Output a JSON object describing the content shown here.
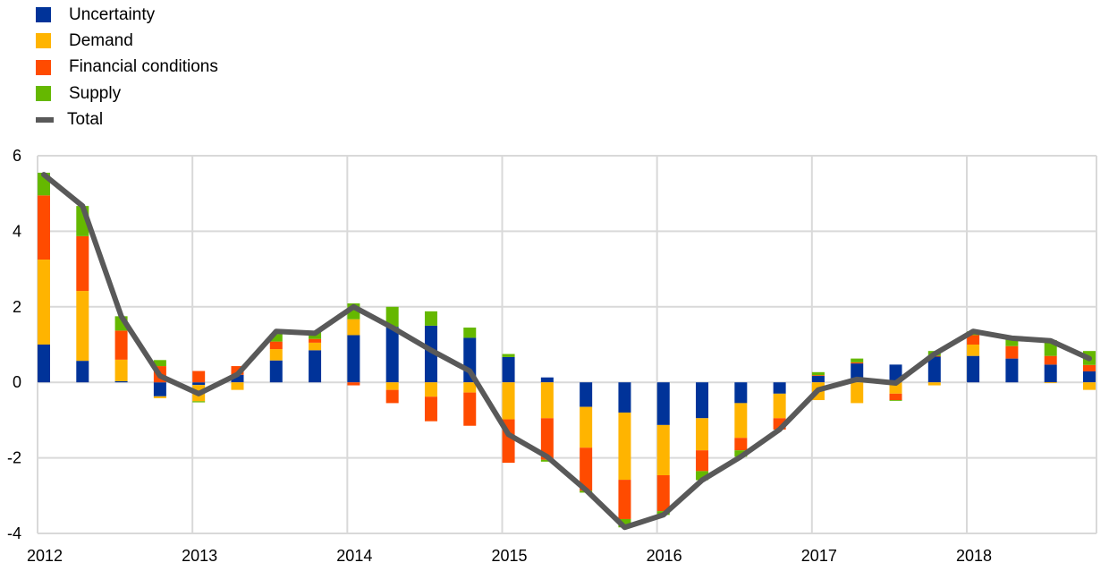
{
  "chart_data": {
    "type": "bar",
    "stacked": true,
    "title": "",
    "xlabel": "",
    "ylabel": "",
    "ylim": [
      -4,
      6
    ],
    "yticks": [
      "-4",
      "-2",
      "0",
      "2",
      "4",
      "6"
    ],
    "xticks": [
      "2012",
      "2013",
      "2014",
      "2015",
      "2016",
      "2017",
      "2018"
    ],
    "grid": true,
    "legend_position": "top-left",
    "categories": [
      "2012Q1",
      "2012Q2",
      "2012Q3",
      "2012Q4",
      "2013Q1",
      "2013Q2",
      "2013Q3",
      "2013Q4",
      "2014Q1",
      "2014Q2",
      "2014Q3",
      "2014Q4",
      "2015Q1",
      "2015Q2",
      "2015Q3",
      "2015Q4",
      "2016Q1",
      "2016Q2",
      "2016Q3",
      "2016Q4",
      "2017Q1",
      "2017Q2",
      "2017Q3",
      "2017Q4",
      "2018Q1",
      "2018Q2",
      "2018Q3",
      "2018Q4"
    ],
    "series": [
      {
        "name": "Uncertainty",
        "color": "#003399",
        "values": [
          1.0,
          0.57,
          0.03,
          -0.37,
          -0.07,
          0.2,
          0.58,
          0.85,
          1.25,
          1.47,
          1.5,
          1.18,
          0.67,
          0.13,
          -0.65,
          -0.8,
          -1.13,
          -0.95,
          -0.55,
          -0.3,
          0.17,
          0.5,
          0.47,
          0.68,
          0.7,
          0.63,
          0.47,
          0.29
        ]
      },
      {
        "name": "Demand",
        "color": "#FFB400",
        "values": [
          2.25,
          1.85,
          0.57,
          -0.05,
          -0.43,
          -0.2,
          0.3,
          0.2,
          0.42,
          -0.2,
          -0.38,
          -0.27,
          -0.98,
          -0.95,
          -1.08,
          -1.78,
          -1.33,
          -0.85,
          -0.92,
          -0.65,
          -0.47,
          -0.55,
          -0.3,
          -0.08,
          0.3,
          0.0,
          -0.02,
          -0.2
        ]
      },
      {
        "name": "Financial conditions",
        "color": "#FF4B00",
        "values": [
          1.7,
          1.45,
          0.77,
          0.43,
          0.3,
          0.23,
          0.2,
          0.1,
          -0.08,
          -0.35,
          -0.65,
          -0.88,
          -1.15,
          -1.1,
          -1.14,
          -1.04,
          -0.95,
          -0.55,
          -0.33,
          -0.3,
          0.02,
          0.03,
          -0.17,
          0.02,
          0.25,
          0.33,
          0.23,
          0.17
        ]
      },
      {
        "name": "Supply",
        "color": "#65B800",
        "values": [
          0.6,
          0.8,
          0.38,
          0.16,
          -0.03,
          0.0,
          0.2,
          0.2,
          0.42,
          0.53,
          0.38,
          0.27,
          0.08,
          -0.05,
          -0.05,
          -0.22,
          -0.1,
          -0.24,
          -0.17,
          0.0,
          0.08,
          0.1,
          -0.02,
          0.13,
          0.1,
          0.18,
          0.42,
          0.37
        ]
      }
    ],
    "line": {
      "name": "Total",
      "color": "#595959",
      "values": [
        5.5,
        4.67,
        1.75,
        0.17,
        -0.3,
        0.21,
        1.35,
        1.3,
        2.0,
        1.45,
        0.85,
        0.3,
        -1.38,
        -1.97,
        -2.85,
        -3.84,
        -3.51,
        -2.59,
        -1.97,
        -1.25,
        -0.2,
        0.08,
        -0.02,
        0.75,
        1.35,
        1.17,
        1.1,
        0.63
      ]
    }
  }
}
